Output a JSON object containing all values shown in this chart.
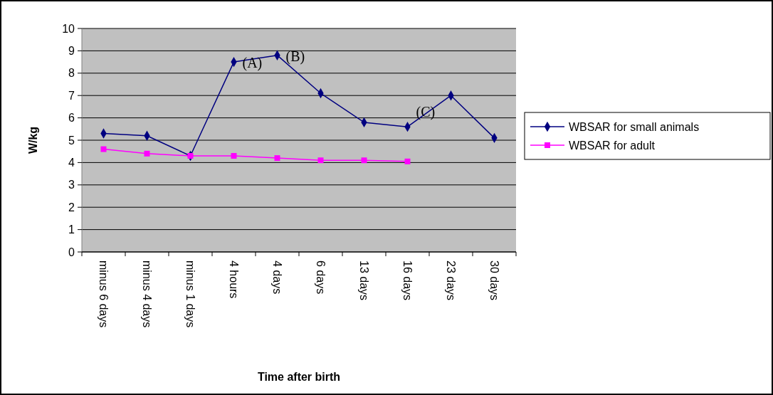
{
  "chart_data": {
    "type": "line",
    "xlabel": "Time after birth",
    "ylabel": "W/kg",
    "categories": [
      "minus 6 days",
      "minus 4 days",
      "minus 1 days",
      "4 hours",
      "4 days",
      "6 days",
      "13 days",
      "16 days",
      "23 days",
      "30 days"
    ],
    "series": [
      {
        "name": "WBSAR for small animals",
        "color": "#000080",
        "marker": "diamond",
        "values": [
          5.3,
          5.2,
          4.3,
          8.5,
          8.8,
          7.1,
          5.8,
          5.6,
          7.0,
          5.1
        ]
      },
      {
        "name": "WBSAR for adult",
        "color": "#ff00ff",
        "marker": "square",
        "values": [
          4.6,
          4.4,
          4.3,
          4.3,
          4.2,
          4.1,
          4.1,
          4.05,
          null,
          null
        ]
      }
    ],
    "ylim": [
      0,
      10
    ],
    "yticks": [
      0,
      1,
      2,
      3,
      4,
      5,
      6,
      7,
      8,
      9,
      10
    ],
    "grid": "y",
    "legend": "right",
    "line_style": "solid",
    "annotations": [
      {
        "text": "(A)",
        "x": "4 hours",
        "y": 8.5
      },
      {
        "text": "(B)",
        "x": "4 days",
        "y": 8.8
      },
      {
        "text": "(C)",
        "x": "16 days",
        "y": 5.6
      }
    ]
  }
}
